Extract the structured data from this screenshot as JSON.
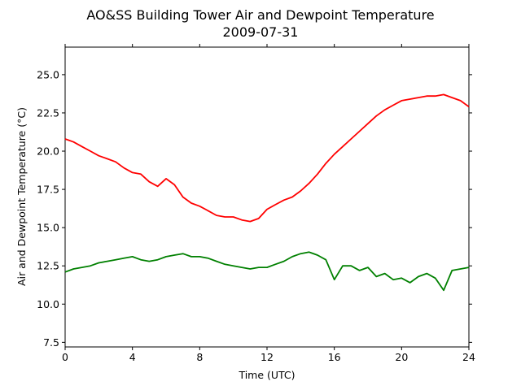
{
  "chart_data": {
    "type": "line",
    "title": "AO&SS Building Tower Air and Dewpoint Temperature",
    "subtitle": "2009-07-31",
    "xlabel": "Time (UTC)",
    "ylabel": "Air and Dewpoint Temperature (°C)",
    "xlim": [
      0,
      24
    ],
    "ylim": [
      7.2,
      26.8
    ],
    "xticks": [
      0,
      4,
      8,
      12,
      16,
      20,
      24
    ],
    "yticks": [
      "7.5",
      "10.0",
      "12.5",
      "15.0",
      "17.5",
      "20.0",
      "22.5",
      "25.0"
    ],
    "ytick_values": [
      7.5,
      10.0,
      12.5,
      15.0,
      17.5,
      20.0,
      22.5,
      25.0
    ],
    "grid": false,
    "series": [
      {
        "color": "#ff0000",
        "x": [
          0,
          0.5,
          1,
          1.5,
          2,
          2.5,
          3,
          3.5,
          4,
          4.5,
          5,
          5.5,
          6,
          6.5,
          7,
          7.5,
          8,
          8.5,
          9,
          9.5,
          10,
          10.5,
          11,
          11.5,
          12,
          12.5,
          13,
          13.5,
          14,
          14.5,
          15,
          15.5,
          16,
          16.5,
          17,
          17.5,
          18,
          18.5,
          19,
          19.5,
          20,
          20.5,
          21,
          21.5,
          22,
          22.5,
          23,
          23.5,
          24
        ],
        "y": [
          20.8,
          20.6,
          20.3,
          20.0,
          19.7,
          19.5,
          19.3,
          18.9,
          18.6,
          18.5,
          18.0,
          17.7,
          18.2,
          17.8,
          17.0,
          16.6,
          16.4,
          16.1,
          15.8,
          15.7,
          15.7,
          15.5,
          15.4,
          15.6,
          16.2,
          16.5,
          16.8,
          17.0,
          17.4,
          17.9,
          18.5,
          19.2,
          19.8,
          20.3,
          20.8,
          21.3,
          21.8,
          22.3,
          22.7,
          23.0,
          23.3,
          23.4,
          23.5,
          23.6,
          23.6,
          23.7,
          23.5,
          23.3,
          22.9
        ]
      },
      {
        "color": "#008000",
        "x": [
          0,
          0.5,
          1,
          1.5,
          2,
          2.5,
          3,
          3.5,
          4,
          4.5,
          5,
          5.5,
          6,
          6.5,
          7,
          7.5,
          8,
          8.5,
          9,
          9.5,
          10,
          10.5,
          11,
          11.5,
          12,
          12.5,
          13,
          13.5,
          14,
          14.5,
          15,
          15.5,
          16,
          16.5,
          17,
          17.5,
          18,
          18.5,
          19,
          19.5,
          20,
          20.5,
          21,
          21.5,
          22,
          22.5,
          23,
          23.5,
          24
        ],
        "y": [
          12.1,
          12.3,
          12.4,
          12.5,
          12.7,
          12.8,
          12.9,
          13.0,
          13.1,
          12.9,
          12.8,
          12.9,
          13.1,
          13.2,
          13.3,
          13.1,
          13.1,
          13.0,
          12.8,
          12.6,
          12.5,
          12.4,
          12.3,
          12.4,
          12.4,
          12.6,
          12.8,
          13.1,
          13.3,
          13.4,
          13.2,
          12.9,
          11.6,
          12.5,
          12.5,
          12.2,
          12.4,
          11.8,
          12.0,
          11.6,
          11.7,
          11.4,
          11.8,
          12.0,
          11.7,
          10.9,
          12.2,
          12.3,
          12.4
        ]
      }
    ]
  }
}
